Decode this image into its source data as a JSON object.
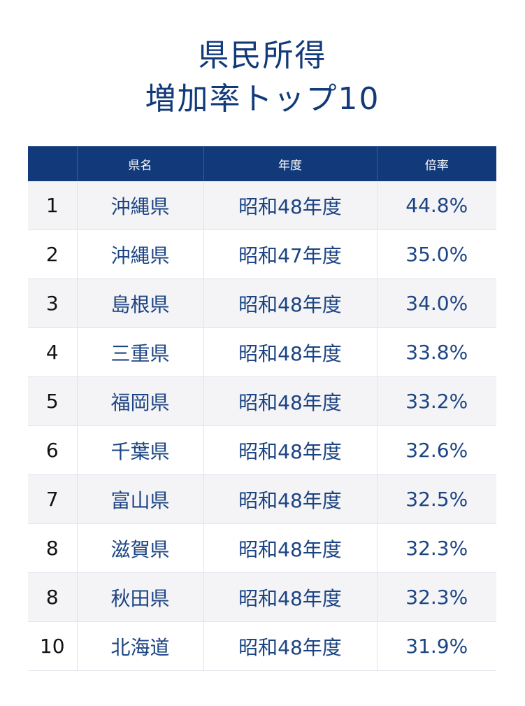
{
  "title": {
    "line1": "県民所得",
    "line2": "増加率トップ10"
  },
  "chart_data": {
    "type": "table",
    "columns": [
      "",
      "県名",
      "年度",
      "倍率"
    ],
    "rows": [
      [
        "1",
        "沖縄県",
        "昭和48年度",
        "44.8%"
      ],
      [
        "2",
        "沖縄県",
        "昭和47年度",
        "35.0%"
      ],
      [
        "3",
        "島根県",
        "昭和48年度",
        "34.0%"
      ],
      [
        "4",
        "三重県",
        "昭和48年度",
        "33.8%"
      ],
      [
        "5",
        "福岡県",
        "昭和48年度",
        "33.2%"
      ],
      [
        "6",
        "千葉県",
        "昭和48年度",
        "32.6%"
      ],
      [
        "7",
        "富山県",
        "昭和48年度",
        "32.5%"
      ],
      [
        "8",
        "滋賀県",
        "昭和48年度",
        "32.3%"
      ],
      [
        "8",
        "秋田県",
        "昭和48年度",
        "32.3%"
      ],
      [
        "10",
        "北海道",
        "昭和48年度",
        "31.9%"
      ]
    ]
  },
  "colors": {
    "header_bg": "#123a7a",
    "title_text": "#123a7a",
    "cell_text": "#1c4483",
    "row_stripe": "#f4f4f6"
  }
}
